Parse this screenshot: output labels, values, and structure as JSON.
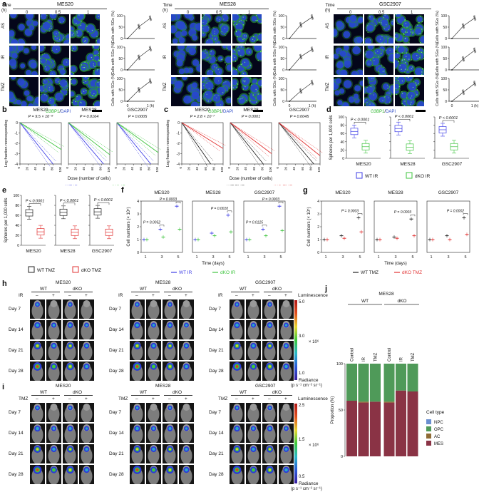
{
  "panel_letters": [
    "a",
    "b",
    "c",
    "d",
    "e",
    "f",
    "g",
    "h",
    "i",
    "j"
  ],
  "panel_a": {
    "time_label": "Time",
    "time_unit": "(h)",
    "times": [
      "0",
      "0.5",
      "1"
    ],
    "cell_lines": [
      "MES20",
      "MES28",
      "GSC2907"
    ],
    "rows": [
      "AS",
      "IR",
      "TMZ"
    ],
    "stain": {
      "green": "G3BP1",
      "sep": "/",
      "blue": "DAPI"
    },
    "ylabel": "Cells with SGs (%)",
    "y_ticks": [
      "0",
      "50",
      "100"
    ],
    "x_ticks": [
      "0",
      "1 (h)"
    ],
    "colors": {
      "green": "#49d64a",
      "blue": "#2f4cc8"
    }
  },
  "panel_b": {
    "titles": [
      "MES20",
      "MES28",
      "GSC2907"
    ],
    "pvalues": [
      "P = 9.5 × 10⁻⁸",
      "P = 0.0164",
      "P = 0.0005"
    ],
    "ylabel": "Log fraction nonresponding",
    "xlabel": "Dose (number of cells)",
    "y_ticks": [
      "0",
      "-1",
      "-2",
      "-3",
      "-4"
    ],
    "x_ticks": [
      "0",
      "20",
      "40",
      "60",
      "80",
      "100"
    ],
    "legend": [
      {
        "name": "WT IR",
        "color": "#3c3ce6"
      },
      {
        "name": "dKO IR",
        "color": "#3ec43e"
      }
    ]
  },
  "panel_c": {
    "titles": [
      "MES20",
      "MES28",
      "GSC2907"
    ],
    "pvalues": [
      "P = 2.8 × 10⁻⁷",
      "P = 0.0001",
      "P = 0.0045"
    ],
    "ylabel": "Log fraction nonresponding",
    "xlabel": "Dose (number of cells)",
    "y_ticks": [
      "0",
      "-1",
      "-2",
      "-3",
      "-4"
    ],
    "x_ticks": [
      "0",
      "20",
      "40",
      "60",
      "80",
      "100"
    ],
    "legend": [
      {
        "name": "WT TMZ",
        "color": "#222222"
      },
      {
        "name": "dKO TMZ",
        "color": "#e23232"
      }
    ]
  },
  "panel_d": {
    "ylabel": "Spheres per 1,000 cells",
    "y_ticks": [
      "0",
      "20",
      "40",
      "60",
      "80",
      "100"
    ],
    "pvalue": "P < 0.0001",
    "legend": [
      {
        "name": "WT IR",
        "color": "#3c3ce6"
      },
      {
        "name": "dKO IR",
        "color": "#3ec43e"
      }
    ]
  },
  "panel_e": {
    "ylabel": "Spheres per 1,000 cells",
    "y_ticks": [
      "0",
      "20",
      "40",
      "60",
      "80",
      "100"
    ],
    "pvalue": "P < 0.0001",
    "legend": [
      {
        "name": "WT TMZ",
        "color": "#222222"
      },
      {
        "name": "dKO TMZ",
        "color": "#e23232"
      }
    ]
  },
  "panel_f": {
    "ylabel": "Cell numbers (× 10⁵)",
    "xlabel": "Time (days)",
    "y_ticks": [
      "0",
      "1",
      "2",
      "3",
      "4"
    ],
    "x_ticks": [
      "1",
      "3",
      "5"
    ],
    "legend": [
      {
        "name": "WT IR",
        "color": "#3c3ce6"
      },
      {
        "name": "dKO IR",
        "color": "#3ec43e"
      }
    ]
  },
  "panel_g": {
    "ylabel": "Cell numbers (× 10⁵)",
    "xlabel": "Time (days)",
    "y_ticks": [
      "0",
      "1",
      "2",
      "3",
      "4"
    ],
    "x_ticks": [
      "1",
      "3",
      "5"
    ],
    "legend": [
      {
        "name": "WT TMZ",
        "color": "#222222"
      },
      {
        "name": "dKO TMZ",
        "color": "#e23232"
      }
    ]
  },
  "panel_h": {
    "cell_lines": [
      "MES20",
      "MES28",
      "GSC2907"
    ],
    "genotypes": [
      "WT",
      "dKO"
    ],
    "treatment": "IR",
    "signs": [
      "–",
      "+",
      "–",
      "+"
    ],
    "days": [
      "Day 7",
      "Day 14",
      "Day 21",
      "Day 28"
    ],
    "scale_title": "Luminescence",
    "scale_ticks": [
      "5.0",
      "3.0",
      "1.0"
    ],
    "scale_mult": "× 10⁶",
    "radiance": "Radiance",
    "radiance_unit": "(p s⁻¹ cm⁻² sr⁻¹)"
  },
  "panel_i": {
    "cell_lines": [
      "MES20",
      "MES28",
      "GSC2907"
    ],
    "genotypes": [
      "WT",
      "dKO"
    ],
    "treatment": "TMZ",
    "signs": [
      "–",
      "+",
      "–",
      "+"
    ],
    "days": [
      "Day 7",
      "Day 14",
      "Day 21",
      "Day 28"
    ],
    "scale_title": "Luminescence",
    "scale_ticks": [
      "2.5",
      "1.5",
      "0.5"
    ],
    "scale_mult": "× 10⁶",
    "radiance": "Radiance",
    "radiance_unit": "(p s⁻¹ cm⁻² sr⁻¹)"
  },
  "panel_j": {
    "title": "MES28",
    "groups": [
      "WT",
      "dKO"
    ],
    "ylabel": "Proportion (%)",
    "y_ticks": [
      "0",
      "50",
      "100"
    ],
    "legend_title": "Cell type",
    "cell_types": [
      {
        "name": "NPC",
        "color": "#6a8fd0"
      },
      {
        "name": "OPC",
        "color": "#4f9a59"
      },
      {
        "name": "AC",
        "color": "#8f6b35"
      },
      {
        "name": "MES",
        "color": "#8a3345"
      }
    ]
  },
  "chart_data": [
    {
      "id": "a",
      "type": "line",
      "ylabel": "Cells with SGs (%)",
      "ylim": [
        0,
        100
      ],
      "x": [
        0,
        0.5,
        1
      ],
      "series": [
        {
          "values": [
            0,
            52,
            89
          ]
        },
        {
          "values": [
            0,
            55,
            93
          ]
        },
        {
          "values": [
            0,
            50,
            88
          ]
        },
        {
          "values": [
            0,
            60,
            94
          ]
        },
        {
          "values": [
            0,
            58,
            90
          ]
        },
        {
          "values": [
            0,
            45,
            82
          ]
        },
        {
          "values": [
            0,
            55,
            90
          ]
        },
        {
          "values": [
            0,
            48,
            86
          ]
        },
        {
          "values": [
            0,
            40,
            78
          ]
        }
      ]
    },
    {
      "id": "b",
      "type": "line",
      "ylabel": "Log fraction nonresponding",
      "xlabel": "Dose (number of cells)",
      "xlim": [
        0,
        100
      ],
      "ylim": [
        -4,
        0
      ],
      "series": [
        {
          "name": "WT IR",
          "values": [
            [
              0,
              0
            ],
            [
              80,
              -4
            ]
          ]
        },
        {
          "name": "dKO IR",
          "values": [
            [
              0,
              0
            ],
            [
              100,
              -2.6
            ]
          ]
        },
        {
          "name": "WT IR",
          "values": [
            [
              0,
              0
            ],
            [
              85,
              -4
            ]
          ]
        },
        {
          "name": "dKO IR",
          "values": [
            [
              0,
              0
            ],
            [
              100,
              -3.1
            ]
          ]
        },
        {
          "name": "WT IR",
          "values": [
            [
              0,
              0
            ],
            [
              82,
              -4
            ]
          ]
        },
        {
          "name": "dKO IR",
          "values": [
            [
              0,
              0
            ],
            [
              100,
              -2.9
            ]
          ]
        }
      ]
    },
    {
      "id": "c",
      "type": "line",
      "ylabel": "Log fraction nonresponding",
      "xlabel": "Dose (number of cells)",
      "xlim": [
        0,
        100
      ],
      "ylim": [
        -4,
        0
      ],
      "series": [
        {
          "name": "WT TMZ",
          "values": [
            [
              0,
              0
            ],
            [
              70,
              -4
            ]
          ]
        },
        {
          "name": "dKO TMZ",
          "values": [
            [
              0,
              0
            ],
            [
              100,
              -2.5
            ]
          ]
        },
        {
          "name": "WT TMZ",
          "values": [
            [
              0,
              0
            ],
            [
              80,
              -4
            ]
          ]
        },
        {
          "name": "dKO TMZ",
          "values": [
            [
              0,
              0
            ],
            [
              100,
              -3.0
            ]
          ]
        },
        {
          "name": "WT TMZ",
          "values": [
            [
              0,
              0
            ],
            [
              85,
              -4
            ]
          ]
        },
        {
          "name": "dKO TMZ",
          "values": [
            [
              0,
              0
            ],
            [
              100,
              -3.2
            ]
          ]
        }
      ]
    },
    {
      "id": "d",
      "type": "bar",
      "categories": [
        "MES20",
        "MES28",
        "GSC2907"
      ],
      "ylabel": "Spheres per 1,000 cells",
      "ylim": [
        0,
        100
      ],
      "series": [
        {
          "name": "WT IR",
          "values": [
            65,
            72,
            69
          ]
        },
        {
          "name": "dKO IR",
          "values": [
            28,
            27,
            28
          ]
        }
      ]
    },
    {
      "id": "e",
      "type": "bar",
      "categories": [
        "MES20",
        "MES28",
        "GSC2907"
      ],
      "ylabel": "Spheres per 1,000 cells",
      "ylim": [
        0,
        100
      ],
      "series": [
        {
          "name": "WT TMZ",
          "values": [
            65,
            66,
            67
          ]
        },
        {
          "name": "dKO TMZ",
          "values": [
            27,
            26,
            26
          ]
        }
      ]
    },
    {
      "id": "f",
      "type": "line",
      "xlabel": "Time (days)",
      "ylabel": "Cell numbers (× 10⁵)",
      "ylim": [
        0,
        4
      ],
      "panels": [
        {
          "title": "MES20",
          "x": [
            1,
            3,
            5
          ],
          "series": [
            {
              "name": "WT IR",
              "values": [
                1,
                1.8,
                3.6
              ]
            },
            {
              "name": "dKO IR",
              "values": [
                1,
                1.2,
                1.8
              ]
            }
          ],
          "pvalues": [
            "P = 0.0052",
            "P = 0.0003"
          ]
        },
        {
          "title": "MES28",
          "x": [
            1,
            3,
            5
          ],
          "series": [
            {
              "name": "WT IR",
              "values": [
                1,
                1.5,
                2.9
              ]
            },
            {
              "name": "dKO IR",
              "values": [
                1,
                1.3,
                1.6
              ]
            }
          ],
          "pvalues": [
            "P = 0.0010"
          ]
        },
        {
          "title": "GSC2907",
          "x": [
            1,
            3,
            5
          ],
          "series": [
            {
              "name": "WT IR",
              "values": [
                1,
                1.8,
                3.6
              ]
            },
            {
              "name": "dKO IR",
              "values": [
                1,
                1.3,
                1.7
              ]
            }
          ],
          "pvalues": [
            "P = 0.0125",
            "P = 0.0003"
          ]
        }
      ]
    },
    {
      "id": "g",
      "type": "line",
      "xlabel": "Time (days)",
      "ylabel": "Cell numbers (× 10⁵)",
      "ylim": [
        0,
        4
      ],
      "panels": [
        {
          "title": "MES20",
          "x": [
            1,
            3,
            5
          ],
          "series": [
            {
              "name": "WT TMZ",
              "values": [
                1,
                1.3,
                2.7
              ]
            },
            {
              "name": "dKO TMZ",
              "values": [
                1,
                1.1,
                1.6
              ]
            }
          ],
          "pvalues": [
            "P = 0.0003"
          ]
        },
        {
          "title": "MES28",
          "x": [
            1,
            3,
            5
          ],
          "series": [
            {
              "name": "WT TMZ",
              "values": [
                1,
                1.2,
                2.6
              ]
            },
            {
              "name": "dKO TMZ",
              "values": [
                1,
                1.1,
                1.3
              ]
            }
          ],
          "pvalues": [
            "P = 0.0003"
          ]
        },
        {
          "title": "GSC2907",
          "x": [
            1,
            3,
            5
          ],
          "series": [
            {
              "name": "WT TMZ",
              "values": [
                1,
                1.3,
                2.7
              ]
            },
            {
              "name": "dKO TMZ",
              "values": [
                1,
                1.0,
                1.4
              ]
            }
          ],
          "pvalues": [
            "P = 0.0002"
          ]
        }
      ]
    },
    {
      "id": "j",
      "type": "bar",
      "stacked": true,
      "title": "MES28",
      "categories": [
        "Control",
        "IR",
        "TMZ",
        "Control",
        "IR",
        "TMZ"
      ],
      "ylabel": "Proportion (%)",
      "ylim": [
        0,
        100
      ],
      "series": [
        {
          "name": "MES",
          "values": [
            60,
            58,
            59,
            58,
            71,
            70
          ]
        },
        {
          "name": "AC",
          "values": [
            0,
            1,
            0,
            1,
            0,
            0
          ]
        },
        {
          "name": "OPC",
          "values": [
            40,
            41,
            41,
            41,
            29,
            30
          ]
        },
        {
          "name": "NPC",
          "values": [
            0,
            0,
            0,
            0,
            0,
            0
          ]
        }
      ]
    }
  ]
}
